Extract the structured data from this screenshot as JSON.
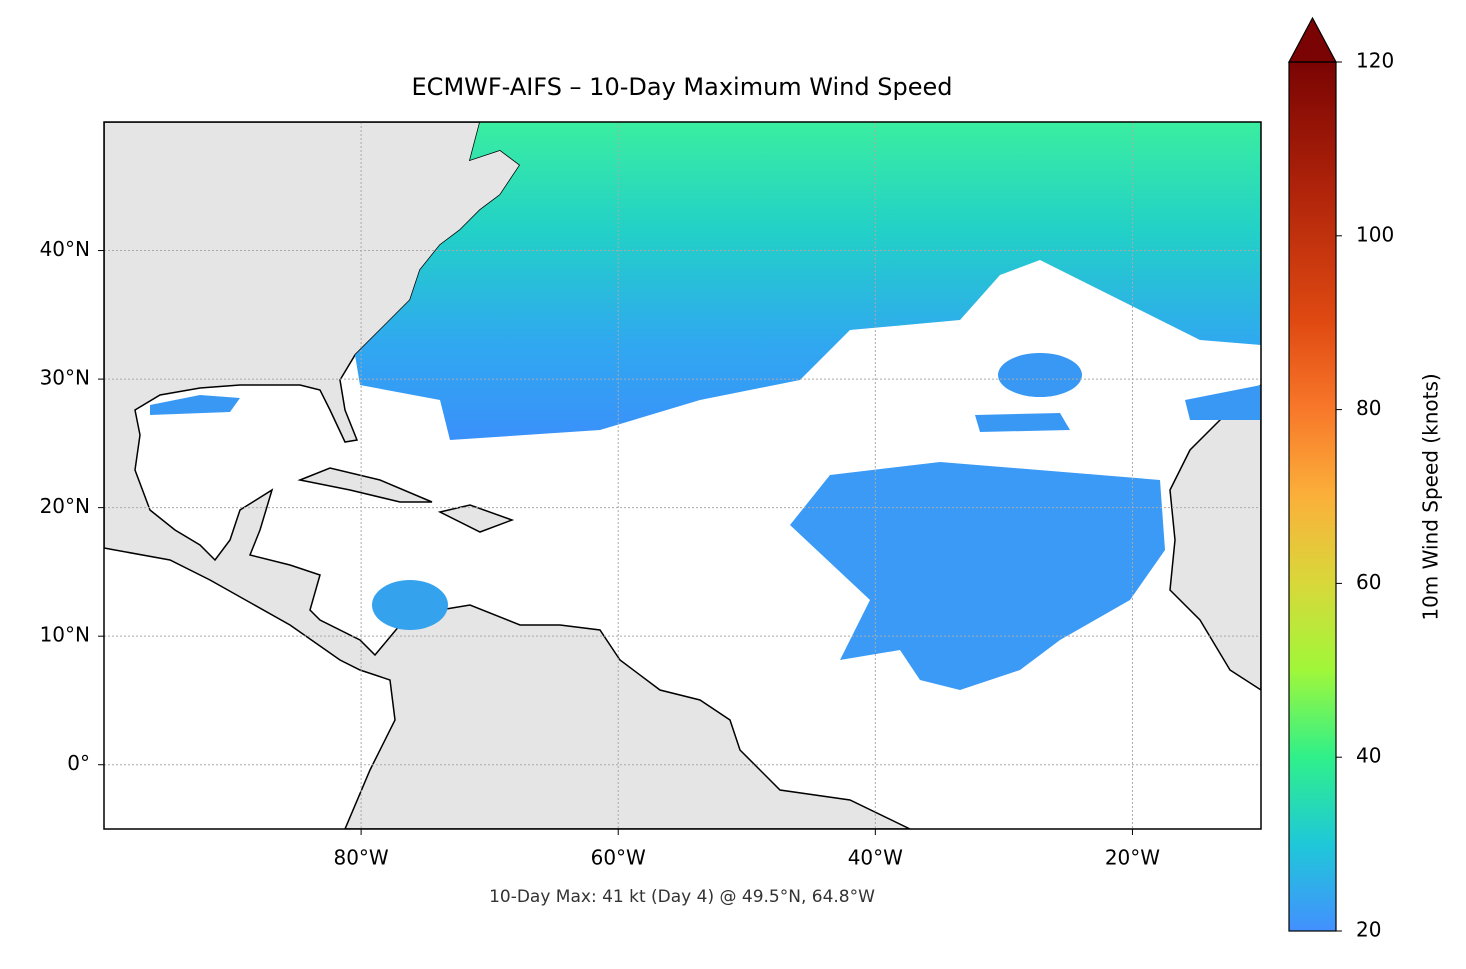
{
  "chart_data": {
    "type": "map",
    "title": "ECMWF-AIFS – 10-Day Maximum Wind Speed",
    "annotation": "10-Day Max: 41 kt (Day 4) @ 49.5°N, 64.8°W",
    "xlim": [
      -100,
      -10
    ],
    "ylim": [
      -5,
      50
    ],
    "xticks": [
      {
        "value": -80,
        "label": "80°W"
      },
      {
        "value": -60,
        "label": "60°W"
      },
      {
        "value": -40,
        "label": "40°W"
      },
      {
        "value": -20,
        "label": "20°W"
      }
    ],
    "yticks": [
      {
        "value": 0,
        "label": "0°"
      },
      {
        "value": 10,
        "label": "10°N"
      },
      {
        "value": 20,
        "label": "20°N"
      },
      {
        "value": 30,
        "label": "30°N"
      },
      {
        "value": 40,
        "label": "40°N"
      }
    ],
    "grid": true,
    "colorbar": {
      "label": "10m Wind Speed (knots)",
      "lim": [
        20,
        120
      ],
      "ticks": [
        20,
        40,
        60,
        80,
        100,
        120
      ],
      "extend": "max"
    }
  }
}
